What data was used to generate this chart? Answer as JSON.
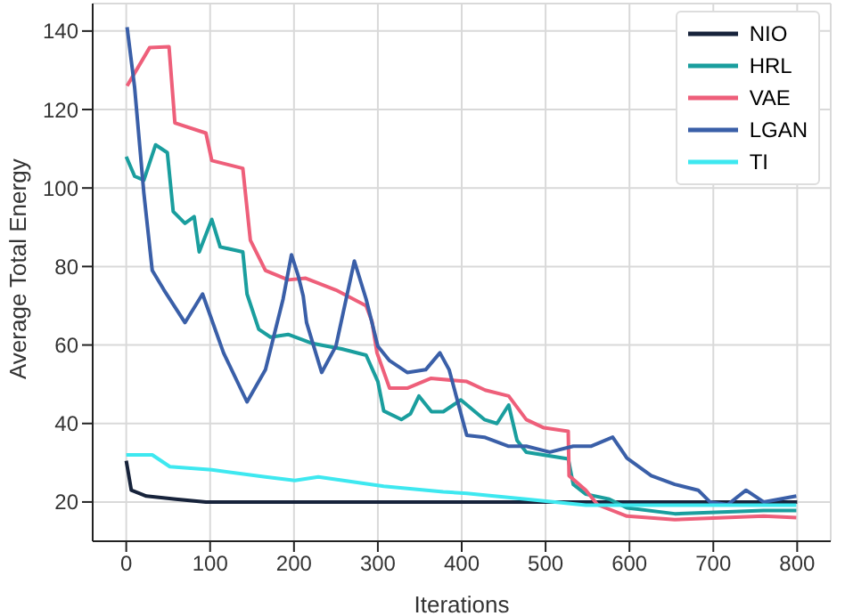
{
  "chart_data": {
    "type": "line",
    "xlabel": "Iterations",
    "ylabel": "Average Total Energy",
    "xlim": [
      -40,
      840
    ],
    "ylim": [
      10,
      147
    ],
    "xticks": [
      0,
      100,
      200,
      300,
      400,
      500,
      600,
      700,
      800
    ],
    "yticks": [
      20,
      40,
      60,
      80,
      100,
      120,
      140
    ],
    "grid": true,
    "legend": "top right",
    "marker": "none",
    "line_style": "solid",
    "series": [
      {
        "name": "NIO",
        "color": "#17233b",
        "x": [
          0,
          6,
          24,
          59,
          95,
          200,
          400,
          600,
          800
        ],
        "values": [
          30.5,
          23,
          21.5,
          20.7,
          20,
          20,
          20,
          20,
          20
        ]
      },
      {
        "name": "HRL",
        "color": "#1a9e9e",
        "x": [
          0,
          10,
          21,
          35,
          49,
          56,
          70,
          81,
          87,
          102,
          112,
          139,
          144,
          158,
          172,
          193,
          222,
          257,
          286,
          300,
          307,
          328,
          339,
          349,
          364,
          378,
          399,
          427,
          442,
          456,
          466,
          477,
          527,
          533,
          548,
          576,
          597,
          654,
          760,
          799
        ],
        "values": [
          108,
          103,
          102,
          111,
          109,
          94,
          91,
          92.7,
          83.7,
          92,
          85,
          83.7,
          73,
          64,
          62,
          62.7,
          60.4,
          59,
          57.4,
          50.7,
          43.2,
          41,
          42.5,
          47,
          43,
          43,
          46,
          41,
          40,
          44.7,
          35.7,
          32.7,
          31,
          24.5,
          22,
          20.7,
          18.5,
          17,
          17.8,
          17.8
        ]
      },
      {
        "name": "VAE",
        "color": "#ee5f7a",
        "x": [
          1,
          28,
          51,
          58,
          95,
          102,
          139,
          148,
          166,
          193,
          214,
          250,
          286,
          293,
          299,
          314,
          335,
          363,
          406,
          428,
          456,
          477,
          498,
          527,
          528,
          548,
          562,
          597,
          654,
          760,
          799
        ],
        "values": [
          126,
          135.8,
          136,
          116.6,
          114,
          107,
          105,
          86.7,
          79,
          76.6,
          77,
          74,
          70,
          66,
          58,
          49,
          49,
          51.5,
          50.7,
          48.5,
          47,
          41,
          38.9,
          38,
          26.7,
          23,
          19.3,
          16.4,
          15.5,
          16.4,
          16
        ]
      },
      {
        "name": "LGAN",
        "color": "#3a5fa8",
        "x": [
          1,
          10,
          21,
          31,
          45,
          70,
          91,
          116,
          144,
          166,
          187,
          197,
          205,
          211,
          215,
          233,
          250,
          272,
          286,
          300,
          314,
          335,
          357,
          374,
          385,
          406,
          427,
          456,
          477,
          505,
          533,
          554,
          580,
          597,
          626,
          654,
          682,
          696,
          717,
          739,
          760,
          799
        ],
        "values": [
          141,
          125.6,
          98.7,
          79,
          74,
          65.7,
          73,
          58,
          45.5,
          53.7,
          71.7,
          83,
          77.7,
          72.5,
          65.7,
          53,
          59.7,
          81.4,
          71.7,
          59.7,
          56,
          53,
          53.7,
          58,
          53.7,
          37,
          36.5,
          34.2,
          34.2,
          32.7,
          34.2,
          34.2,
          36.5,
          31.2,
          26.7,
          24.5,
          23,
          20,
          19.3,
          23,
          20,
          21.5
        ]
      },
      {
        "name": "TI",
        "color": "#3ee8f0",
        "x": [
          0,
          31,
          52,
          102,
          166,
          201,
          229,
          307,
          378,
          406,
          477,
          548,
          618,
          799
        ],
        "values": [
          32,
          32,
          29,
          28.2,
          26.4,
          25.5,
          26.4,
          24,
          22.6,
          22.2,
          20.7,
          19.2,
          19.2,
          19.2
        ]
      }
    ]
  }
}
